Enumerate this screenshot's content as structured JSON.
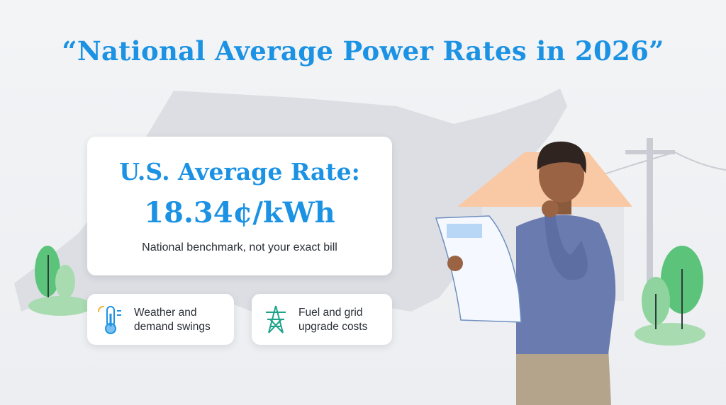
{
  "header": {
    "title": "“National Average Power Rates in 2026”"
  },
  "rate_card": {
    "headline": "U.S. Average Rate:",
    "rate": "18.34¢/kWh",
    "note": "National benchmark, not your exact bill"
  },
  "factors": [
    {
      "label": "Weather and demand swings"
    },
    {
      "label": "Fuel and grid upgrade costs"
    }
  ]
}
